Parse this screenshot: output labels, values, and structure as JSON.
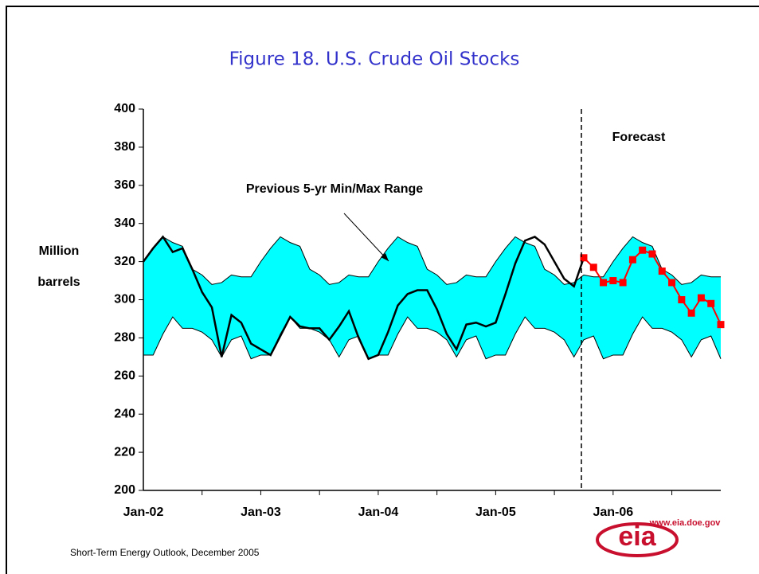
{
  "chart_data": {
    "type": "line",
    "title": "Figure 18. U.S. Crude Oil Stocks",
    "ylabel": [
      "Million",
      "barrels"
    ],
    "categories": [
      "Jan-02",
      null,
      null,
      null,
      null,
      null,
      null,
      null,
      null,
      null,
      null,
      null,
      "Jan-03",
      null,
      null,
      null,
      null,
      null,
      null,
      null,
      null,
      null,
      null,
      null,
      "Jan-04",
      null,
      null,
      null,
      null,
      null,
      null,
      null,
      null,
      null,
      null,
      null,
      "Jan-05",
      null,
      null,
      null,
      null,
      null,
      null,
      null,
      null,
      null,
      null,
      null,
      "Jan-06",
      null,
      null,
      null,
      null,
      null,
      null,
      null,
      null,
      null,
      null,
      null
    ],
    "band": {
      "color": "#00ffff",
      "upper": [
        320,
        327,
        333,
        330,
        328,
        316,
        313,
        308,
        309,
        313,
        312,
        312,
        320,
        327,
        333,
        330,
        328,
        316,
        313,
        308,
        309,
        313,
        312,
        312,
        320,
        327,
        333,
        330,
        328,
        316,
        313,
        308,
        309,
        313,
        312,
        312,
        320,
        327,
        333,
        330,
        328,
        316,
        313,
        308,
        309,
        313,
        312,
        312,
        320,
        327,
        333,
        330,
        328,
        316,
        313,
        308,
        309,
        313,
        312,
        312
      ],
      "lower": [
        271,
        271,
        282,
        291,
        285,
        285,
        283,
        279,
        270,
        279,
        281,
        269,
        271,
        271,
        282,
        291,
        285,
        285,
        283,
        279,
        270,
        279,
        281,
        269,
        271,
        271,
        282,
        291,
        285,
        285,
        283,
        279,
        270,
        279,
        281,
        269,
        271,
        271,
        282,
        291,
        285,
        285,
        283,
        279,
        270,
        279,
        281,
        269,
        271,
        271,
        282,
        291,
        285,
        285,
        283,
        279,
        270,
        279,
        281,
        269
      ]
    },
    "series": [
      {
        "color": "#000000",
        "values": [
          320,
          327,
          333,
          325,
          327,
          316,
          304,
          296,
          270,
          292,
          288,
          277,
          274,
          271,
          281,
          291,
          286,
          285,
          285,
          279,
          286,
          294,
          280,
          269,
          271,
          283,
          297,
          303,
          305,
          305,
          295,
          282,
          274,
          287,
          288,
          286,
          288,
          303,
          319,
          331,
          333,
          329,
          320,
          311,
          307,
          322,
          null,
          null,
          null,
          null,
          null,
          null,
          null,
          null,
          null,
          null,
          null,
          null,
          null,
          null
        ]
      },
      {
        "color": "#ff0000",
        "values": [
          null,
          null,
          null,
          null,
          null,
          null,
          null,
          null,
          null,
          null,
          null,
          null,
          null,
          null,
          null,
          null,
          null,
          null,
          null,
          null,
          null,
          null,
          null,
          null,
          null,
          null,
          null,
          null,
          null,
          null,
          null,
          null,
          null,
          null,
          null,
          null,
          null,
          null,
          null,
          null,
          null,
          null,
          null,
          null,
          null,
          322,
          317,
          309,
          310,
          309,
          321,
          326,
          324,
          315,
          309,
          300,
          293,
          301,
          298,
          287
        ]
      }
    ],
    "ylim": [
      200,
      400
    ],
    "yticks": [
      200,
      220,
      240,
      260,
      280,
      300,
      320,
      340,
      360,
      380,
      400
    ],
    "annotations": [
      "Previous 5-yr Min/Max Range",
      "Forecast"
    ],
    "source": "Short-Term Energy Outlook, December 2005",
    "logo_text": "eia",
    "logo_url": "www.eia.doe.gov"
  }
}
